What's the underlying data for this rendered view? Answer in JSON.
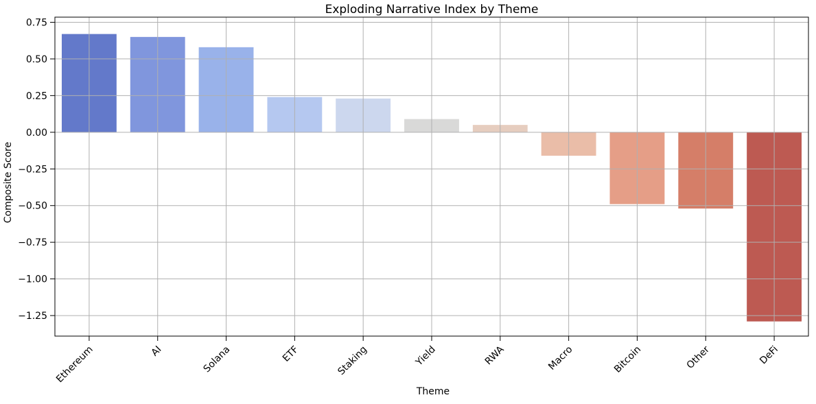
{
  "figure": {
    "background_color": "#ffffff",
    "spine_color": "#000000",
    "grid_color": "#b0b0b0",
    "text_color": "#000000"
  },
  "chart_data": {
    "type": "bar",
    "title": "Exploding Narrative Index by Theme",
    "xlabel": "Theme",
    "ylabel": "Composite Score",
    "categories": [
      "Ethereum",
      "AI",
      "Solana",
      "ETF",
      "Staking",
      "Yield",
      "RWA",
      "Macro",
      "Bitcoin",
      "Other",
      "DeFi"
    ],
    "values": [
      0.67,
      0.65,
      0.58,
      0.24,
      0.23,
      0.09,
      0.05,
      -0.16,
      -0.49,
      -0.52,
      -1.29
    ],
    "bar_colors": [
      "#6379ca",
      "#8096dd",
      "#99b2ea",
      "#b5c8f0",
      "#ccd7ee",
      "#d9d9d8",
      "#e6cdbf",
      "#eabda8",
      "#e59e87",
      "#d57e68",
      "#bd5a52"
    ],
    "ylim": [
      -1.39,
      0.785
    ],
    "yticks": [
      0.75,
      0.5,
      0.25,
      0,
      -0.25,
      -0.5,
      -0.75,
      -1.0,
      -1.25
    ],
    "ytick_labels": [
      "0.75",
      "0.50",
      "0.25",
      "0.00",
      "−0.25",
      "−0.50",
      "−0.75",
      "−1.00",
      "−1.25"
    ],
    "grid": true,
    "legend_position": "none",
    "bar_width_fraction": 0.8,
    "x_tick_rotation_deg": 45
  }
}
